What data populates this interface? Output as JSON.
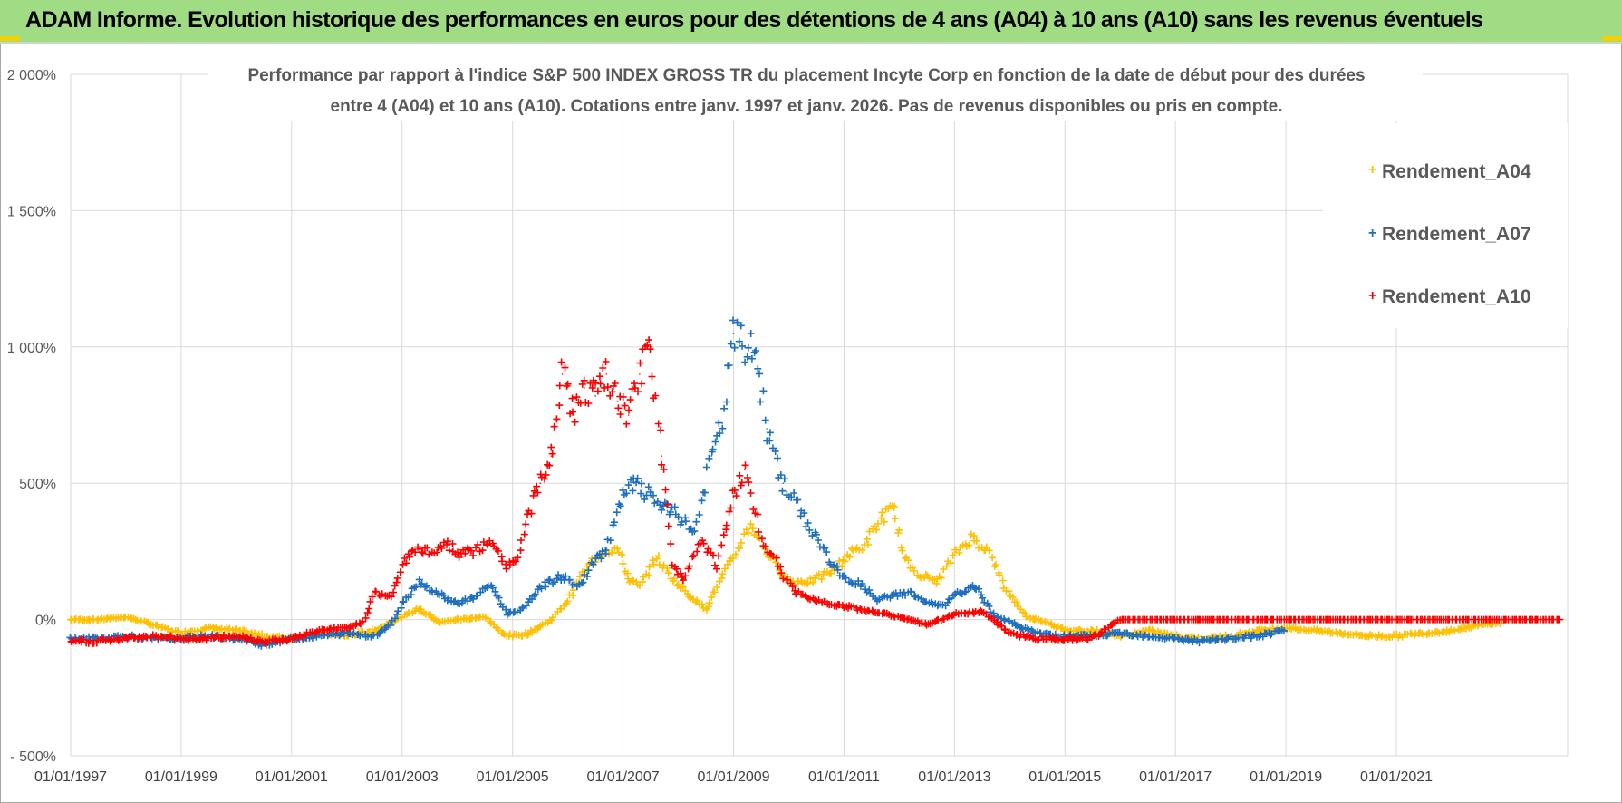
{
  "header": {
    "title": "ADAM Informe. Evolution historique des performances en euros pour des détentions de 4 ans (A04) à 10 ans (A10) sans les revenus éventuels"
  },
  "colors": {
    "banner": "#9fdc84",
    "A04": "#ffc000",
    "A07": "#1f6fc0",
    "A10": "#ff0000",
    "grid": "#d9d9d9"
  },
  "chart_data": {
    "type": "scatter",
    "title_lines": [
      "Performance par rapport à l'indice S&P 500 INDEX GROSS TR  du placement Incyte Corp en fonction de la date de début pour des durées",
      "entre 4 (A04) et 10 ans (A10).  Cotations entre janv. 1997 et janv. 2026. Pas de revenus disponibles ou pris en compte."
    ],
    "xlabel": "",
    "ylabel": "",
    "xlim": [
      1997.0,
      2024.1
    ],
    "ylim": [
      -500,
      2000
    ],
    "y_ticks": [
      -500,
      0,
      500,
      1000,
      1500,
      2000
    ],
    "y_tick_labels": [
      "- 500%",
      "0%",
      "500%",
      "1 000%",
      "1 500%",
      "2 000%"
    ],
    "x_ticks": [
      1997,
      1999,
      2001,
      2003,
      2005,
      2007,
      2009,
      2011,
      2013,
      2015,
      2017,
      2019,
      2021
    ],
    "x_tick_labels": [
      "01/01/1997",
      "01/01/1999",
      "01/01/2001",
      "01/01/2003",
      "01/01/2005",
      "01/01/2007",
      "01/01/2009",
      "01/01/2011",
      "01/01/2013",
      "01/01/2015",
      "01/01/2017",
      "01/01/2019",
      "01/01/2021"
    ],
    "legend_position": "top-right",
    "series": [
      {
        "name": "Rendement_A04",
        "x": [
          1997.0,
          1997.5,
          1998.0,
          1998.5,
          1999.0,
          1999.5,
          2000.0,
          2000.5,
          2001.0,
          2001.5,
          2002.0,
          2002.5,
          2003.0,
          2003.3,
          2003.7,
          2004.0,
          2004.5,
          2004.8,
          2005.0,
          2005.3,
          2005.7,
          2006.0,
          2006.3,
          2006.6,
          2006.9,
          2007.1,
          2007.3,
          2007.6,
          2007.9,
          2008.2,
          2008.5,
          2008.7,
          2009.0,
          2009.3,
          2009.6,
          2010.0,
          2010.4,
          2010.8,
          2011.1,
          2011.4,
          2011.7,
          2011.9,
          2012.1,
          2012.4,
          2012.7,
          2013.0,
          2013.3,
          2013.6,
          2013.9,
          2014.3,
          2014.7,
          2015.0,
          2015.5,
          2016.0,
          2016.5,
          2017.0,
          2017.5,
          2018.0,
          2018.5,
          2019.0,
          2019.5,
          2020.0,
          2020.5,
          2021.0,
          2021.5,
          2022.0,
          2022.5,
          2022.9
        ],
        "values": [
          0,
          0,
          10,
          -20,
          -50,
          -30,
          -40,
          -60,
          -70,
          -50,
          -60,
          -40,
          10,
          40,
          -10,
          0,
          10,
          -50,
          -60,
          -50,
          0,
          70,
          180,
          250,
          260,
          150,
          120,
          230,
          150,
          90,
          40,
          120,
          230,
          350,
          250,
          140,
          140,
          180,
          240,
          280,
          380,
          400,
          220,
          160,
          140,
          240,
          300,
          260,
          120,
          10,
          -10,
          -40,
          -40,
          -60,
          -40,
          -60,
          -70,
          -60,
          -40,
          -30,
          -40,
          -50,
          -60,
          -60,
          -50,
          -40,
          -20,
          -10
        ]
      },
      {
        "name": "Rendement_A07",
        "x": [
          1997.0,
          1997.5,
          1998.0,
          1998.5,
          1999.0,
          1999.5,
          2000.0,
          2000.5,
          2001.0,
          2001.5,
          2002.0,
          2002.5,
          2002.8,
          2003.0,
          2003.3,
          2003.6,
          2004.0,
          2004.3,
          2004.6,
          2004.9,
          2005.2,
          2005.5,
          2005.9,
          2006.2,
          2006.5,
          2006.7,
          2007.0,
          2007.2,
          2007.5,
          2007.8,
          2008.0,
          2008.3,
          2008.6,
          2008.8,
          2009.0,
          2009.2,
          2009.4,
          2009.6,
          2009.9,
          2010.2,
          2010.5,
          2010.8,
          2011.0,
          2011.3,
          2011.6,
          2011.9,
          2012.2,
          2012.5,
          2012.8,
          2013.1,
          2013.4,
          2013.7,
          2014.0,
          2014.5,
          2015.0,
          2015.5,
          2016.0,
          2016.5,
          2017.0,
          2017.5,
          2018.0,
          2018.5,
          2019.0
        ],
        "values": [
          -70,
          -70,
          -60,
          -70,
          -70,
          -60,
          -70,
          -90,
          -70,
          -60,
          -50,
          -60,
          -20,
          60,
          140,
          100,
          60,
          80,
          130,
          20,
          40,
          120,
          160,
          120,
          220,
          260,
          450,
          500,
          450,
          400,
          380,
          320,
          600,
          720,
          1050,
          1000,
          980,
          700,
          500,
          400,
          300,
          200,
          150,
          130,
          70,
          90,
          100,
          60,
          50,
          100,
          120,
          20,
          -10,
          -50,
          -60,
          -60,
          -50,
          -60,
          -70,
          -80,
          -70,
          -60,
          -40
        ]
      },
      {
        "name": "Rendement_A10",
        "x": [
          1997.0,
          1997.5,
          1998.0,
          1998.5,
          1999.0,
          1999.5,
          2000.0,
          2000.5,
          2001.0,
          2001.5,
          2002.0,
          2002.3,
          2002.5,
          2002.8,
          2003.0,
          2003.2,
          2003.5,
          2003.8,
          2004.0,
          2004.3,
          2004.6,
          2004.9,
          2005.1,
          2005.3,
          2005.5,
          2005.7,
          2005.9,
          2006.1,
          2006.3,
          2006.5,
          2006.7,
          2006.9,
          2007.1,
          2007.3,
          2007.5,
          2007.7,
          2007.9,
          2008.1,
          2008.4,
          2008.7,
          2009.0,
          2009.2,
          2009.5,
          2009.8,
          2010.1,
          2010.4,
          2010.7,
          2011.0,
          2011.5,
          2012.0,
          2012.5,
          2013.0,
          2013.5,
          2014.0,
          2014.5,
          2015.0,
          2015.5,
          2016.0,
          2016.5,
          2017.0,
          2017.5,
          2018.0,
          2018.5,
          2019.0,
          2019.5,
          2020.0,
          2020.5,
          2021.0,
          2021.5,
          2022.0,
          2022.5,
          2023.0,
          2023.5,
          2024.0
        ],
        "values": [
          -80,
          -80,
          -70,
          -60,
          -70,
          -70,
          -60,
          -80,
          -70,
          -40,
          -30,
          -10,
          100,
          80,
          200,
          260,
          250,
          280,
          240,
          250,
          280,
          200,
          220,
          400,
          500,
          600,
          900,
          750,
          850,
          820,
          900,
          800,
          750,
          900,
          1000,
          600,
          200,
          150,
          300,
          200,
          450,
          550,
          300,
          200,
          100,
          80,
          60,
          50,
          30,
          10,
          -20,
          20,
          30,
          -50,
          -70,
          -70,
          -70,
          0,
          0,
          0,
          0,
          0,
          0,
          0,
          0,
          0,
          0,
          0,
          0,
          0,
          0,
          0,
          0,
          0
        ]
      }
    ]
  }
}
